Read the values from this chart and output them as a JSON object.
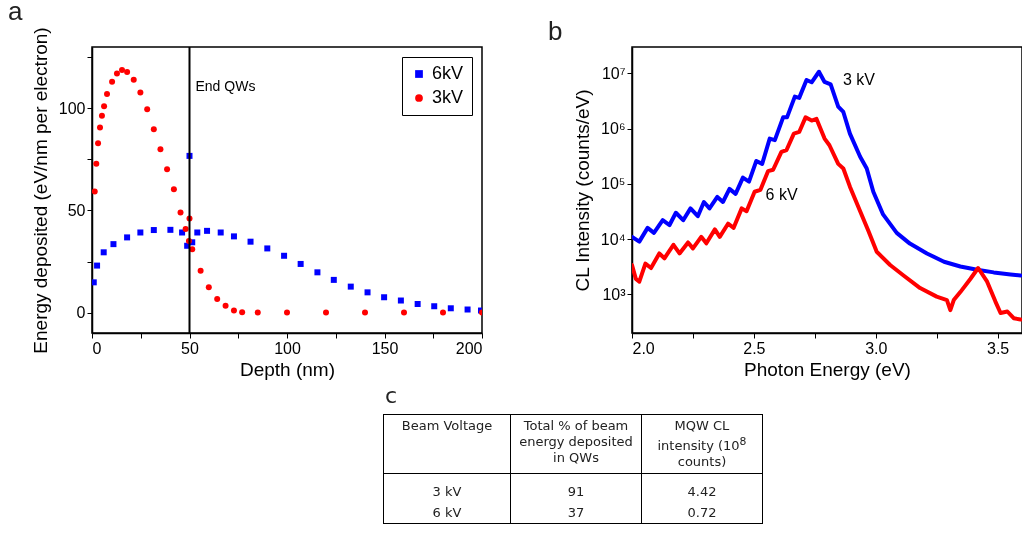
{
  "chart_data": [
    {
      "type": "scatter",
      "title": "a",
      "xlabel": "Depth (nm)",
      "ylabel": "Energy deposited (eV/nm per electron)",
      "xlim": [
        0,
        200
      ],
      "xticks": [
        0,
        {
          "value": 25,
          "label": null
        },
        50,
        {
          "value": 75,
          "label": null
        },
        100,
        {
          "value": 125,
          "label": null
        },
        150,
        {
          "value": 175,
          "label": null
        },
        200
      ],
      "ylim": [
        -10,
        130
      ],
      "yticks": [
        0,
        {
          "value": 25,
          "label": null
        },
        50,
        {
          "value": 75,
          "label": null
        },
        100,
        {
          "value": 125,
          "label": null
        }
      ],
      "grid": false,
      "legend": "top right",
      "ref_lines": [
        {
          "axis": "x",
          "value": 50,
          "label": "End QWs",
          "color": "#000000"
        }
      ],
      "series": [
        {
          "name": "6kV",
          "color": "#0000ff",
          "marker": "square",
          "x": [
            0.9,
            2.6,
            6,
            11,
            18,
            24.8,
            31.7,
            40.2,
            46.2,
            48.8,
            50,
            51.4,
            54,
            59,
            66,
            72.8,
            81.3,
            89.9,
            98.5,
            107,
            115.6,
            124,
            132.7,
            141.3,
            149.8,
            158.4,
            167,
            175.5,
            184,
            192.6,
            199.5
          ],
          "values": [
            14.8,
            23,
            29.5,
            33.5,
            36.8,
            39.2,
            40.4,
            40.5,
            39.2,
            32.7,
            76.7,
            34.4,
            39.2,
            40,
            39.2,
            37.3,
            34.7,
            31.4,
            27.8,
            23.8,
            19.7,
            16,
            12.7,
            9.9,
            7.5,
            5.9,
            4.2,
            3.1,
            2.1,
            1.5,
            1
          ]
        },
        {
          "name": "3kV",
          "color": "#ff0000",
          "marker": "circle",
          "x": [
            1.4,
            2.2,
            3.1,
            4.1,
            5.1,
            6.2,
            7.7,
            10.3,
            12.8,
            15.4,
            18,
            21.4,
            24.8,
            28.3,
            31.7,
            35.1,
            38.5,
            42,
            45.4,
            48,
            49.7,
            50,
            51.4,
            55.7,
            59.9,
            64.2,
            68.5,
            72.8,
            77,
            85,
            100,
            120,
            140,
            160,
            180,
            200
          ],
          "values": [
            59.3,
            72.8,
            82.9,
            90.6,
            96.3,
            101,
            107,
            113,
            117,
            118.7,
            117.8,
            114,
            107.7,
            99.5,
            89.7,
            80,
            70.2,
            60.4,
            49,
            40.9,
            35,
            46,
            31,
            20.5,
            12.4,
            6.7,
            3.4,
            1,
            0.2,
            0,
            0,
            0,
            0,
            0,
            0,
            0
          ]
        }
      ]
    },
    {
      "type": "line",
      "title": "b",
      "xlabel": "Photon Energy (eV)",
      "ylabel": "CL Intensity (counts/eV)",
      "log": "y",
      "xlim": [
        2.0,
        3.6
      ],
      "xticks": [
        {
          "value": 2,
          "label": "2.0"
        },
        {
          "value": 2.25,
          "label": null
        },
        2.5,
        {
          "value": 2.75,
          "label": null
        },
        {
          "value": 3,
          "label": "3.0"
        },
        {
          "value": 3.25,
          "label": null
        },
        3.5
      ],
      "ylim": [
        200,
        30000000
      ],
      "yticks": [
        {
          "value": 1000,
          "label": "10³"
        },
        {
          "value": 10000,
          "label": "10⁴"
        },
        {
          "value": 100000,
          "label": "10⁵"
        },
        {
          "value": 1000000,
          "label": "10⁶"
        },
        {
          "value": 10000000,
          "label": "10⁷"
        }
      ],
      "grid": false,
      "series": [
        {
          "name": "3 kV",
          "color": "#0000ff",
          "x": [
            2.0,
            2.03,
            2.064,
            2.09,
            2.126,
            2.154,
            2.18,
            2.21,
            2.24,
            2.27,
            2.295,
            2.318,
            2.35,
            2.373,
            2.4,
            2.425,
            2.455,
            2.48,
            2.51,
            2.534,
            2.565,
            2.586,
            2.62,
            2.636,
            2.668,
            2.686,
            2.716,
            2.737,
            2.767,
            2.79,
            2.815,
            2.846,
            2.867,
            2.894,
            2.936,
            2.963,
            2.99,
            3.03,
            3.086,
            3.14,
            3.21,
            3.28,
            3.347,
            3.416,
            3.484,
            3.553,
            3.594
          ],
          "values": [
            11000,
            9000,
            16000,
            13000,
            22000,
            18000,
            30000,
            22000,
            36000,
            26000,
            47000,
            36000,
            58000,
            47000,
            81000,
            66000,
            130000,
            110000,
            260000,
            230000,
            660000,
            620000,
            1600000,
            1600000,
            3800000,
            3600000,
            7600000,
            6900000,
            10700000,
            7000000,
            6300000,
            2500000,
            2000000,
            810000,
            310000,
            190000,
            72000,
            28000,
            13000,
            8300,
            5500,
            3900,
            3200,
            2800,
            2500,
            2300,
            2200
          ]
        },
        {
          "name": "6 kV",
          "color": "#ff0000",
          "x": [
            2.0,
            2.016,
            2.03,
            2.055,
            2.078,
            2.112,
            2.133,
            2.17,
            2.195,
            2.23,
            2.25,
            2.284,
            2.305,
            2.34,
            2.36,
            2.394,
            2.417,
            2.45,
            2.47,
            2.503,
            2.527,
            2.558,
            2.579,
            2.613,
            2.634,
            2.664,
            2.686,
            2.712,
            2.737,
            2.757,
            2.79,
            2.81,
            2.846,
            2.867,
            2.894,
            2.936,
            2.97,
            3.004,
            3.059,
            3.114,
            3.182,
            3.25,
            3.292,
            3.306,
            3.32,
            3.347,
            3.388,
            3.42,
            3.457,
            3.491,
            3.512,
            3.54,
            3.566,
            3.594
          ],
          "values": [
            3400,
            1900,
            1700,
            3600,
            3000,
            5500,
            4500,
            7900,
            5500,
            8700,
            6800,
            11000,
            8400,
            15000,
            11000,
            19000,
            16000,
            36000,
            32000,
            72000,
            78000,
            170000,
            180000,
            380000,
            410000,
            810000,
            870000,
            1600000,
            1400000,
            1500000,
            660000,
            500000,
            230000,
            190000,
            89000,
            32000,
            14000,
            5900,
            3400,
            2200,
            1300,
            910,
            790,
            520,
            790,
            1100,
            1900,
            3000,
            1700,
            740,
            460,
            490,
            370,
            350
          ]
        }
      ]
    },
    {
      "type": "other",
      "title": "c",
      "annotations": [
        "Beam Voltage",
        "Total % of beam energy deposited in QWs",
        "MQW CL intensity (10$^{8}$ counts)",
        "3 kV",
        "91",
        "4.42",
        "6 kV",
        "37",
        "0.72"
      ]
    }
  ]
}
